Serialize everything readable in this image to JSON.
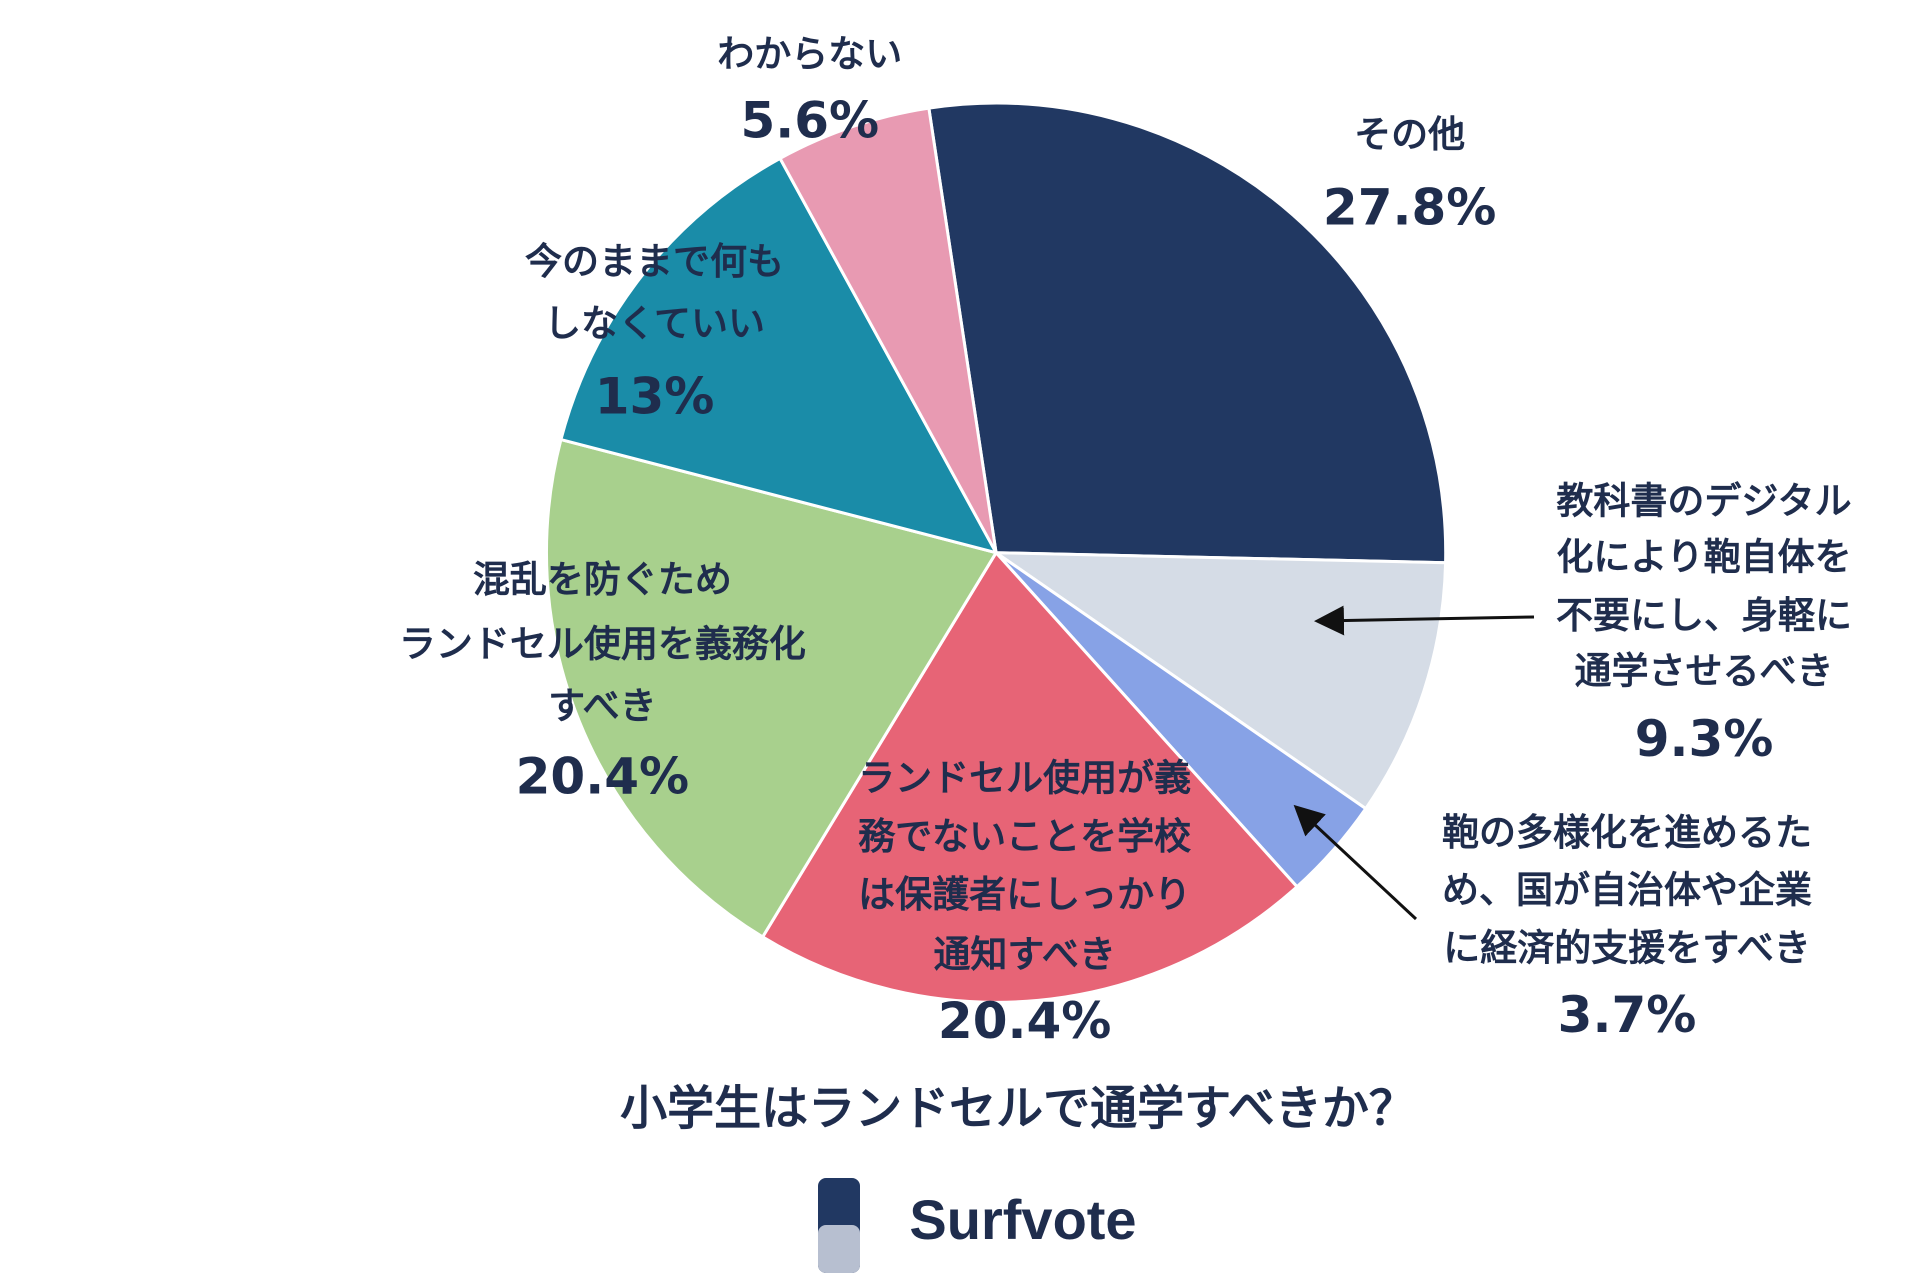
{
  "chart_data": {
    "type": "pie",
    "title": "小学生はランドセルで通学すべきか？",
    "brand": "Surfvote",
    "categories": [
      [
        "その他"
      ],
      [
        "教科書のデジタル",
        "化により鞄自体を",
        "不要にし、身軽に",
        "通学させるべき"
      ],
      [
        "鞄の多様化を進めるた",
        "め、国が自治体や企業",
        "に経済的支援をすべき"
      ],
      [
        "ランドセル使用が義",
        "務でないことを学校",
        "は保護者にしっかり",
        "通知すべき"
      ],
      [
        "混乱を防ぐため",
        "ランドセル使用を義務化",
        "すべき"
      ],
      [
        "今のままで何も",
        "しなくていい"
      ],
      [
        "わからない"
      ]
    ],
    "values": [
      27.8,
      9.3,
      3.7,
      20.4,
      20.4,
      13,
      5.6
    ],
    "value_labels": [
      "27.8%",
      "9.3%",
      "3.7%",
      "20.4%",
      "20.4%",
      "13%",
      "5.6%"
    ],
    "colors": [
      "#213862",
      "#d5dce6",
      "#87a2e6",
      "#e76476",
      "#a8d08d",
      "#1a8ca8",
      "#e89ab2"
    ]
  }
}
